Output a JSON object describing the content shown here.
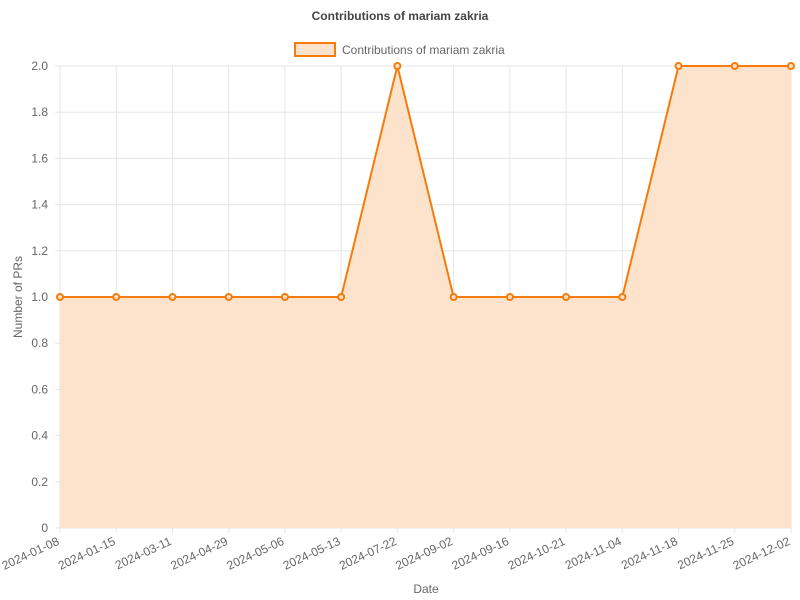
{
  "chart_data": {
    "type": "area",
    "title": "Contributions of mariam zakria",
    "xlabel": "Date",
    "ylabel": "Number of PRs",
    "categories": [
      "2024-01-08",
      "2024-01-15",
      "2024-03-11",
      "2024-04-29",
      "2024-05-06",
      "2024-05-13",
      "2024-07-22",
      "2024-09-02",
      "2024-09-16",
      "2024-10-21",
      "2024-11-04",
      "2024-11-18",
      "2024-11-25",
      "2024-12-02"
    ],
    "series": [
      {
        "name": "Contributions of mariam zakria",
        "values": [
          1,
          1,
          1,
          1,
          1,
          1,
          2,
          1,
          1,
          1,
          1,
          2,
          2,
          2
        ]
      }
    ],
    "ylim": [
      0,
      2
    ],
    "yticks": [
      "0",
      "0.2",
      "0.4",
      "0.6",
      "0.8",
      "1.0",
      "1.2",
      "1.4",
      "1.6",
      "1.8",
      "2.0"
    ],
    "grid": true,
    "legend_position": "top",
    "colors": {
      "line": "#f57c0a",
      "fill": "#fde3cc",
      "grid": "#e5e5e5",
      "text": "#666666"
    }
  }
}
